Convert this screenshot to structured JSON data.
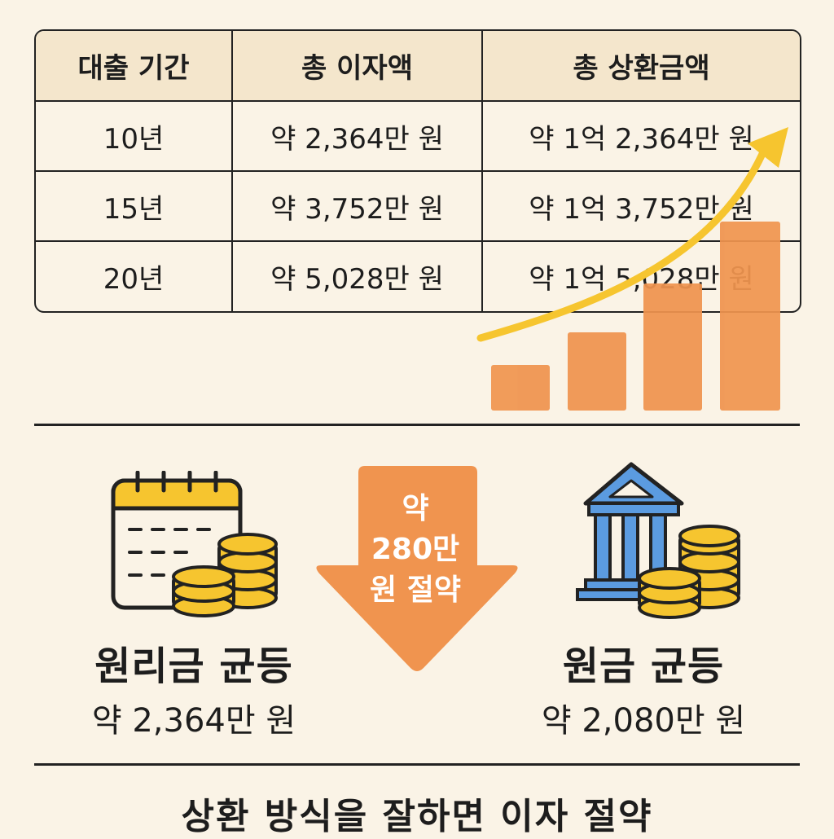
{
  "table": {
    "headers": [
      "대출 기간",
      "총 이자액",
      "총 상환금액"
    ],
    "rows": [
      [
        "10년",
        "약 2,364만 원",
        "약 1억 2,364만 원"
      ],
      [
        "15년",
        "약 3,752만 원",
        "약 1억 3,752만 원"
      ],
      [
        "20년",
        "약 5,028만 원",
        "약 1억 5,028만 원"
      ]
    ]
  },
  "comparison": {
    "left": {
      "name": "원리금 균등",
      "amount": "약 2,364만 원",
      "icon": "calendar-coins-icon"
    },
    "savings": {
      "line1": "약",
      "line2": "280만",
      "line3": "원 절약",
      "icon": "down-arrow-icon"
    },
    "right": {
      "name": "원금 균등",
      "amount": "약 2,080만 원",
      "icon": "bank-coins-icon"
    }
  },
  "footer": {
    "message": "상환 방식을 잘하면 이자 절약"
  },
  "colors": {
    "background": "#faf3e6",
    "header_fill": "#f4e6cc",
    "bar": "#f0944f",
    "trend_arrow": "#f6c52f",
    "coin": "#f6c52f",
    "bank": "#5b9be0",
    "savings_arrow": "#f0944f"
  }
}
